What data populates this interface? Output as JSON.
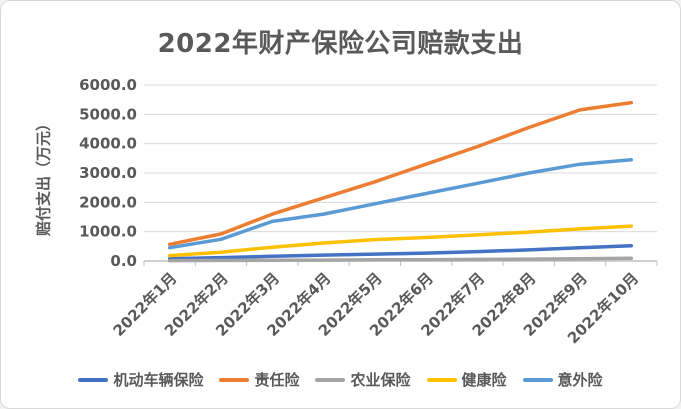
{
  "window": {
    "background_color": "#ffffff",
    "border_color": "#d9d9d9",
    "text_color": "#595959",
    "gridline_color": "#d9d9d9",
    "axis_color": "#bfbfbf"
  },
  "chart_data": {
    "type": "line",
    "title": "2022年财产保险公司赔款支出",
    "xlabel": "",
    "ylabel": "赔付支出（万元）",
    "categories": [
      "2022年1月",
      "2022年2月",
      "2022年3月",
      "2022年4月",
      "2022年5月",
      "2022年6月",
      "2022年7月",
      "2022年8月",
      "2022年9月",
      "2022年10月"
    ],
    "y_ticks": [
      "6000.0",
      "5000.0",
      "4000.0",
      "3000.0",
      "2000.0",
      "1000.0",
      "0.0"
    ],
    "ylim": [
      0,
      6000
    ],
    "grid": true,
    "legend_position": "bottom",
    "series": [
      {
        "name": "机动车辆保险",
        "color": "#4472C4",
        "values": [
          80,
          115,
          160,
          200,
          235,
          270,
          320,
          380,
          450,
          520
        ]
      },
      {
        "name": "责任险",
        "color": "#ED7D31",
        "values": [
          570,
          920,
          1600,
          2150,
          2700,
          3300,
          3900,
          4550,
          5150,
          5400
        ]
      },
      {
        "name": "农业保险",
        "color": "#A5A5A5",
        "values": [
          15,
          20,
          25,
          30,
          40,
          45,
          55,
          65,
          80,
          95
        ]
      },
      {
        "name": "健康险",
        "color": "#FFC000",
        "values": [
          185,
          300,
          470,
          615,
          730,
          800,
          890,
          985,
          1095,
          1190
        ]
      },
      {
        "name": "意外险",
        "color": "#5B9BD5",
        "values": [
          455,
          740,
          1350,
          1600,
          1950,
          2300,
          2650,
          3000,
          3300,
          3450
        ]
      }
    ]
  }
}
